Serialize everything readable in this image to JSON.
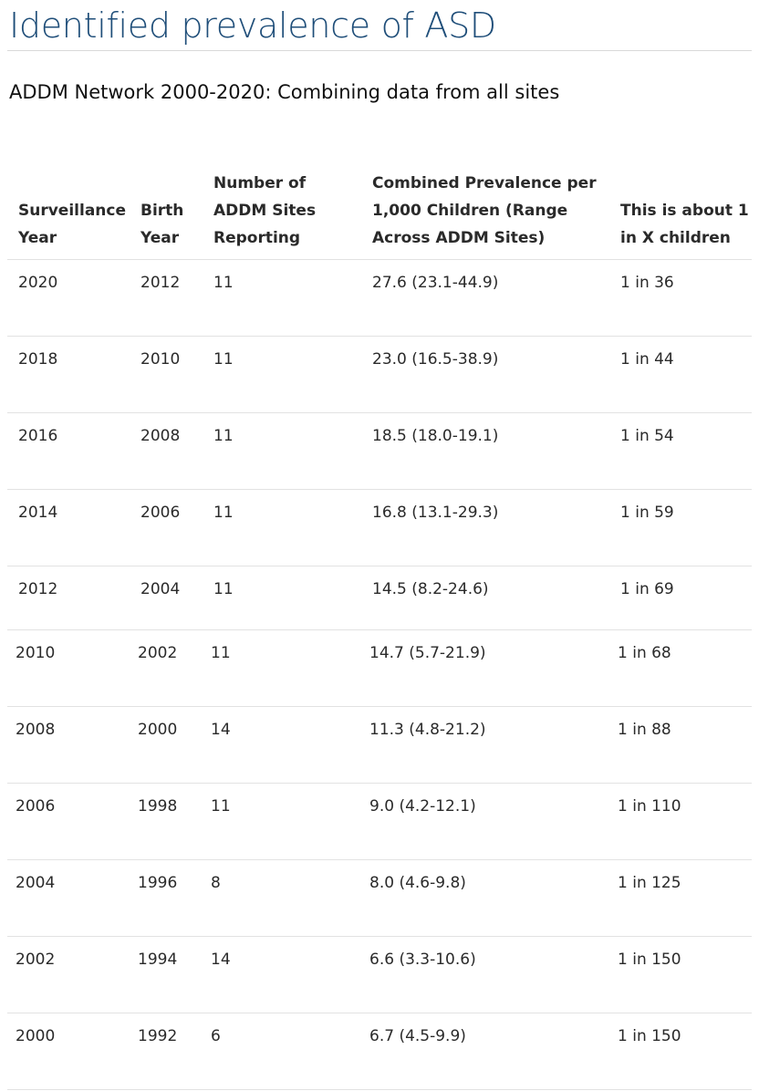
{
  "page": {
    "title": "Identified prevalence of ASD",
    "subtitle": "ADDM Network 2000-2020: Combining data from all sites"
  },
  "table": {
    "headers": [
      "Surveillance Year",
      "Birth Year",
      "Number of ADDM Sites Reporting",
      "Combined Prevalence per 1,000 Children (Range Across ADDM Sites)",
      "This is about 1 in X children"
    ],
    "rows": [
      [
        "2020",
        "2012",
        "11",
        "27.6 (23.1-44.9)",
        "1 in 36"
      ],
      [
        "2018",
        "2010",
        "11",
        "23.0 (16.5-38.9)",
        "1 in 44"
      ],
      [
        "2016",
        "2008",
        "11",
        "18.5 (18.0-19.1)",
        "1 in 54"
      ],
      [
        "2014",
        "2006",
        "11",
        "16.8 (13.1-29.3)",
        "1 in 59"
      ],
      [
        "2012",
        "2004",
        "11",
        "14.5 (8.2-24.6)",
        "1 in 69"
      ],
      [
        "2010",
        "2002",
        "11",
        "14.7 (5.7-21.9)",
        "1 in 68"
      ],
      [
        "2008",
        "2000",
        "14",
        "11.3 (4.8-21.2)",
        "1 in 88"
      ],
      [
        "2006",
        "1998",
        "11",
        "9.0 (4.2-12.1)",
        "1 in 110"
      ],
      [
        "2004",
        "1996",
        "8",
        "8.0 (4.6-9.8)",
        "1 in 125"
      ],
      [
        "2002",
        "1994",
        "14",
        "6.6 (3.3-10.6)",
        "1 in 150"
      ],
      [
        "2000",
        "1992",
        "6",
        "6.7 (4.5-9.9)",
        "1 in 150"
      ]
    ]
  }
}
